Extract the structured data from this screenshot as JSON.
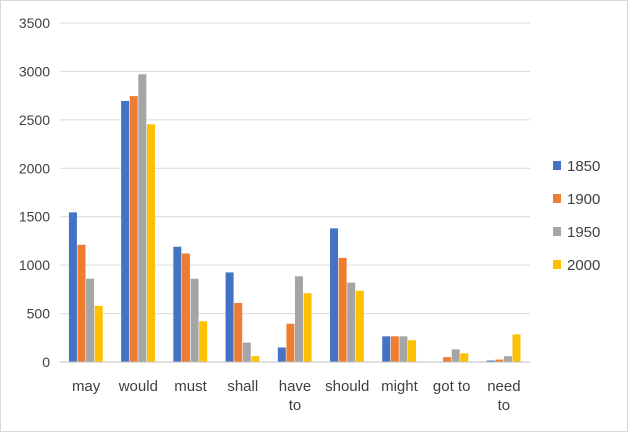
{
  "chart_data": {
    "type": "bar",
    "title": "",
    "xlabel": "",
    "ylabel": "",
    "ylim": [
      0,
      3500
    ],
    "yticks": [
      0,
      500,
      1000,
      1500,
      2000,
      2500,
      3000,
      3500
    ],
    "grid": true,
    "legend_position": "right",
    "categories": [
      [
        "may"
      ],
      [
        "would"
      ],
      [
        "must"
      ],
      [
        "shall"
      ],
      [
        "have",
        "to"
      ],
      [
        "should"
      ],
      [
        "might"
      ],
      [
        "got to"
      ],
      [
        "need",
        "to"
      ]
    ],
    "series": [
      {
        "name": "1850",
        "color": "#4472C4",
        "values": [
          1545,
          2695,
          1190,
          925,
          150,
          1380,
          265,
          0,
          15
        ]
      },
      {
        "name": "1900",
        "color": "#ED7D31",
        "values": [
          1210,
          2745,
          1120,
          610,
          395,
          1075,
          265,
          50,
          25
        ]
      },
      {
        "name": "1950",
        "color": "#A5A5A5",
        "values": [
          860,
          2970,
          860,
          200,
          885,
          820,
          265,
          130,
          60
        ]
      },
      {
        "name": "2000",
        "color": "#FFC000",
        "values": [
          580,
          2455,
          420,
          60,
          710,
          735,
          225,
          90,
          285
        ]
      }
    ]
  }
}
